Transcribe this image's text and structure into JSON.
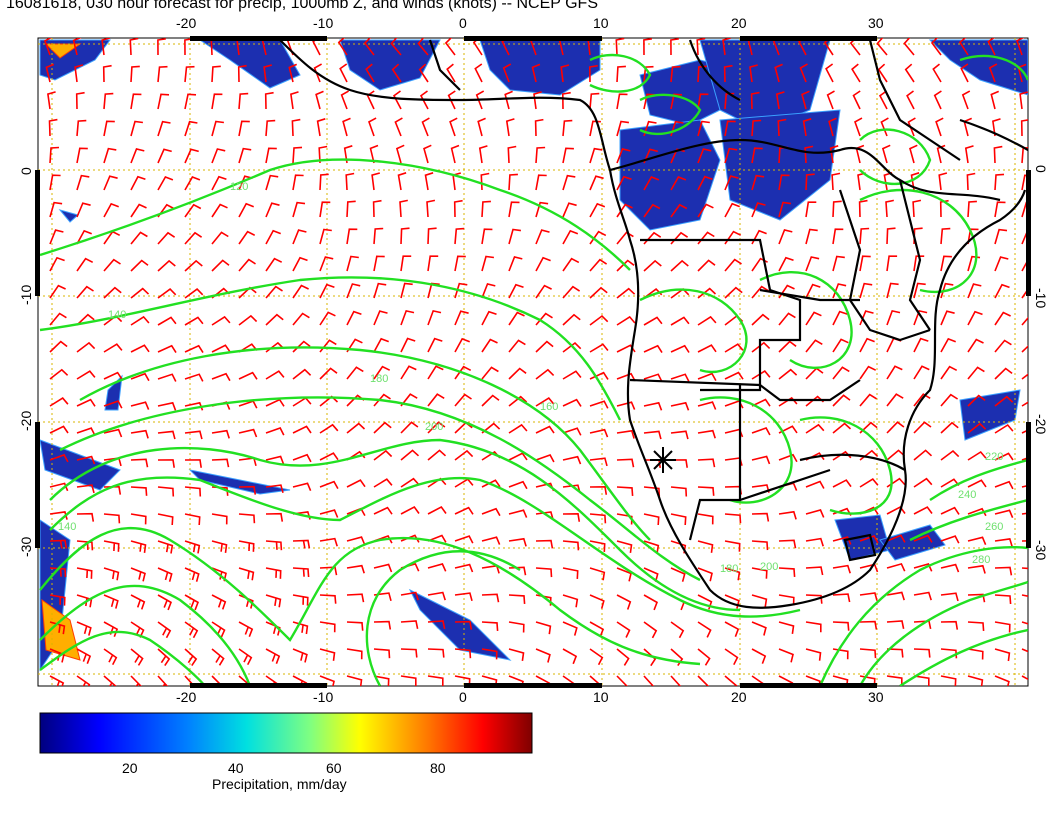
{
  "title": "16081618, 030 hour forecast for precip, 1000mb Z, and winds (knots) -- NCEP GFS",
  "axes": {
    "lon_ticks": [
      "-20",
      "-10",
      "0",
      "10",
      "20",
      "30"
    ],
    "lat_ticks": [
      "0",
      "-10",
      "-20",
      "-30"
    ]
  },
  "contour_labels": [
    "120",
    "140",
    "160",
    "180",
    "200",
    "220",
    "240",
    "260",
    "280"
  ],
  "colorbar": {
    "ticks": [
      "20",
      "40",
      "60",
      "80"
    ],
    "label": "Precipitation, mm/day",
    "range": [
      0,
      100
    ]
  },
  "colors": {
    "wind_barbs": "#ff0000",
    "height_contours": "#00ee00",
    "coastlines": "#000000",
    "gridlines": "#d9b400"
  },
  "map": {
    "lon_range": [
      -30,
      40
    ],
    "lat_range": [
      -40,
      10
    ],
    "projection": "lat-lon"
  }
}
